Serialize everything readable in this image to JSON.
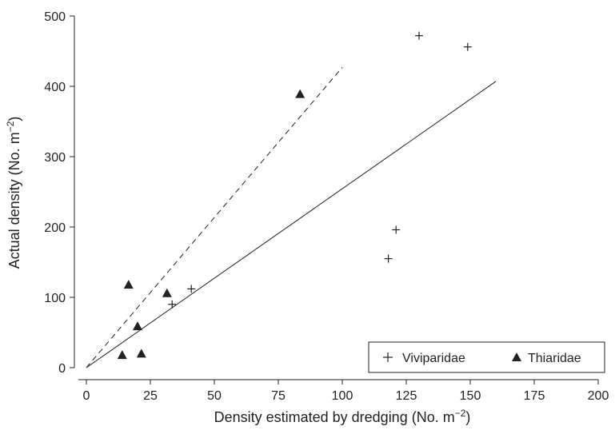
{
  "chart_data": {
    "type": "scatter",
    "xlabel": "Density estimated by dredging (No. m",
    "xlabel_sup": "−2",
    "xlabel_close": ")",
    "ylabel": "Actual density (No. m",
    "ylabel_sup": "−2",
    "ylabel_close": ")",
    "xlim": [
      0,
      200
    ],
    "ylim": [
      0,
      500
    ],
    "xticks": [
      0,
      25,
      50,
      75,
      100,
      125,
      150,
      175,
      200
    ],
    "yticks": [
      0,
      100,
      200,
      300,
      400,
      500
    ],
    "grid": false,
    "legend_position": "bottom-right",
    "series": [
      {
        "name": "Viviparidae",
        "marker": "plus",
        "color": "#222222",
        "points": [
          [
            33.5,
            90
          ],
          [
            41,
            112
          ],
          [
            118,
            155
          ],
          [
            121,
            196
          ],
          [
            130,
            472
          ],
          [
            149,
            456
          ]
        ]
      },
      {
        "name": "Thiaridae",
        "marker": "triangle",
        "color": "#222222",
        "points": [
          [
            14,
            18
          ],
          [
            16.5,
            118
          ],
          [
            20,
            59
          ],
          [
            21.5,
            20
          ],
          [
            31.5,
            106
          ],
          [
            83.5,
            389
          ]
        ]
      }
    ],
    "lines": [
      {
        "style": "solid",
        "x": [
          0,
          160
        ],
        "y": [
          0,
          407
        ]
      },
      {
        "style": "dashed",
        "x": [
          0,
          100
        ],
        "y": [
          0,
          427
        ]
      }
    ]
  }
}
